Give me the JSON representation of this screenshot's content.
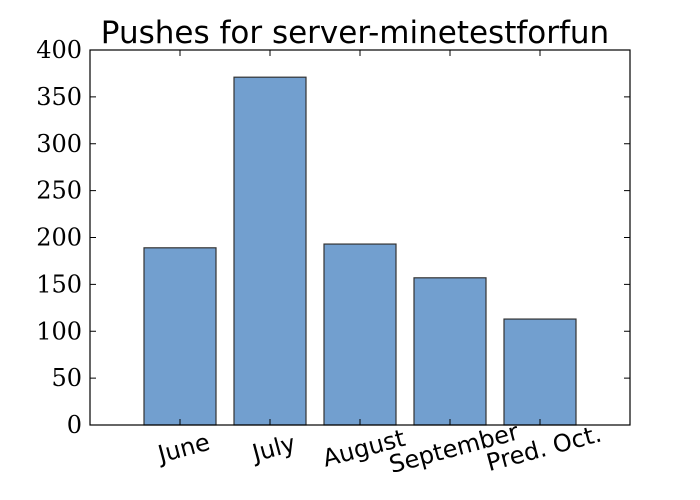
{
  "chart_data": {
    "type": "bar",
    "title": "Pushes for server-minetestforfun",
    "xlabel": "",
    "ylabel": "",
    "categories": [
      "June",
      "July",
      "August",
      "September",
      "Pred. Oct."
    ],
    "values": [
      189,
      371,
      193,
      157,
      113
    ],
    "ylim": [
      0,
      400
    ],
    "yticks": [
      0,
      50,
      100,
      150,
      200,
      250,
      300,
      350,
      400
    ],
    "grid": false,
    "legend": "none",
    "bar_color": "#729fcf",
    "edge_color": "#333333"
  }
}
